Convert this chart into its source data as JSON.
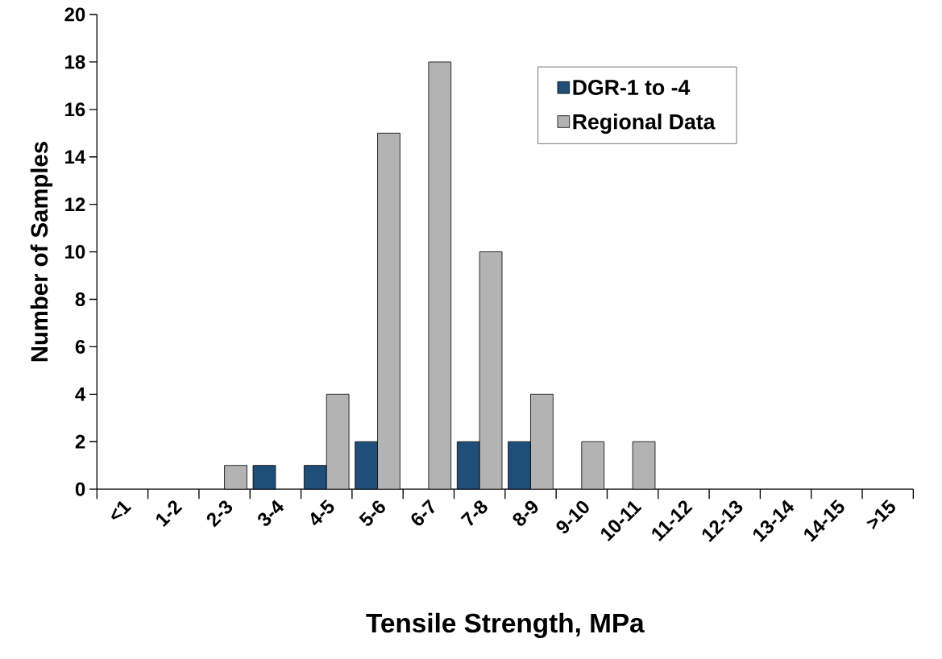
{
  "chart_data": {
    "type": "bar",
    "xlabel": "Tensile Strength, MPa",
    "ylabel": "Number of Samples",
    "categories": [
      "<1",
      "1-2",
      "2-3",
      "3-4",
      "4-5",
      "5-6",
      "6-7",
      "7-8",
      "8-9",
      "9-10",
      "10-11",
      "11-12",
      "12-13",
      "13-14",
      "14-15",
      ">15"
    ],
    "series": [
      {
        "name": "DGR-1 to -4",
        "color": "#1f4e79",
        "values": [
          0,
          0,
          0,
          1,
          1,
          2,
          0,
          2,
          2,
          0,
          0,
          0,
          0,
          0,
          0,
          0
        ]
      },
      {
        "name": "Regional Data",
        "color": "#b3b3b3",
        "values": [
          0,
          0,
          1,
          0,
          4,
          15,
          18,
          10,
          4,
          2,
          2,
          0,
          0,
          0,
          0,
          0
        ]
      }
    ],
    "ylim": [
      0,
      20
    ],
    "yticks": [
      0,
      2,
      4,
      6,
      8,
      10,
      12,
      14,
      16,
      18,
      20
    ],
    "grid": false,
    "legend": "top right"
  }
}
